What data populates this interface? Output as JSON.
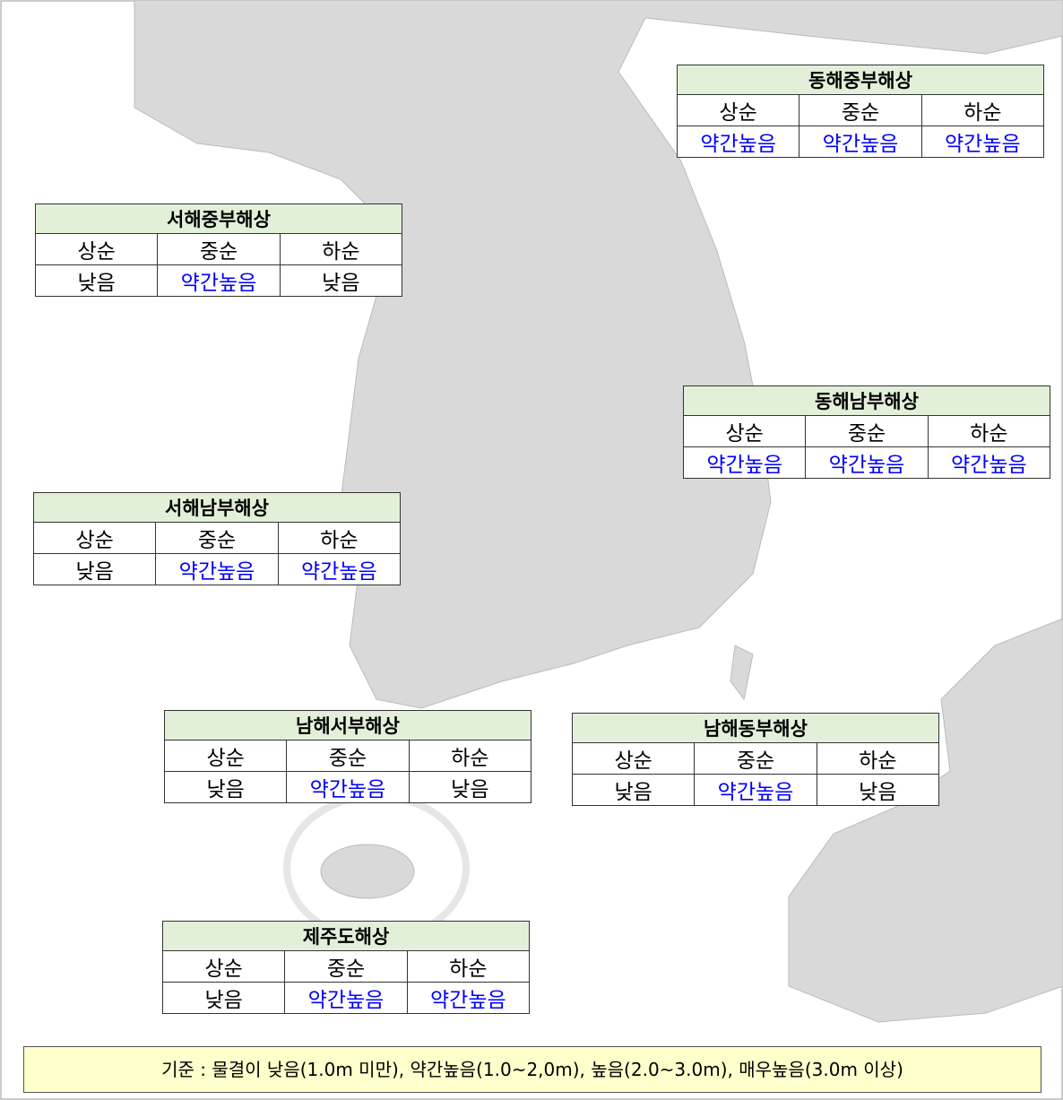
{
  "regions": [
    {
      "title": "동해중부해상",
      "headers": [
        "상순",
        "중순",
        "하순"
      ],
      "cells": [
        {
          "text": "약간높음",
          "color": "#0000ff"
        },
        {
          "text": "약간높음",
          "color": "#0000ff"
        },
        {
          "text": "약간높음",
          "color": "#0000ff"
        }
      ]
    },
    {
      "title": "서해중부해상",
      "headers": [
        "상순",
        "중순",
        "하순"
      ],
      "cells": [
        {
          "text": "낮음",
          "color": "#000000"
        },
        {
          "text": "약간높음",
          "color": "#0000ff"
        },
        {
          "text": "낮음",
          "color": "#000000"
        }
      ]
    },
    {
      "title": "동해남부해상",
      "headers": [
        "상순",
        "중순",
        "하순"
      ],
      "cells": [
        {
          "text": "약간높음",
          "color": "#0000ff"
        },
        {
          "text": "약간높음",
          "color": "#0000ff"
        },
        {
          "text": "약간높음",
          "color": "#0000ff"
        }
      ]
    },
    {
      "title": "서해남부해상",
      "headers": [
        "상순",
        "중순",
        "하순"
      ],
      "cells": [
        {
          "text": "낮음",
          "color": "#000000"
        },
        {
          "text": "약간높음",
          "color": "#0000ff"
        },
        {
          "text": "약간높음",
          "color": "#0000ff"
        }
      ]
    },
    {
      "title": "남해서부해상",
      "headers": [
        "상순",
        "중순",
        "하순"
      ],
      "cells": [
        {
          "text": "낮음",
          "color": "#000000"
        },
        {
          "text": "약간높음",
          "color": "#0000ff"
        },
        {
          "text": "낮음",
          "color": "#000000"
        }
      ]
    },
    {
      "title": "남해동부해상",
      "headers": [
        "상순",
        "중순",
        "하순"
      ],
      "cells": [
        {
          "text": "낮음",
          "color": "#000000"
        },
        {
          "text": "약간높음",
          "color": "#0000ff"
        },
        {
          "text": "낮음",
          "color": "#000000"
        }
      ]
    },
    {
      "title": "제주도해상",
      "headers": [
        "상순",
        "중순",
        "하순"
      ],
      "cells": [
        {
          "text": "낮음",
          "color": "#000000"
        },
        {
          "text": "약간높음",
          "color": "#0000ff"
        },
        {
          "text": "약간높음",
          "color": "#0000ff"
        }
      ]
    }
  ],
  "legend": "기준 : 물결이 낮음(1.0m 미만), 약간높음(1.0~2,0m), 높음(2.0~3.0m), 매우높음(3.0m 이상)"
}
